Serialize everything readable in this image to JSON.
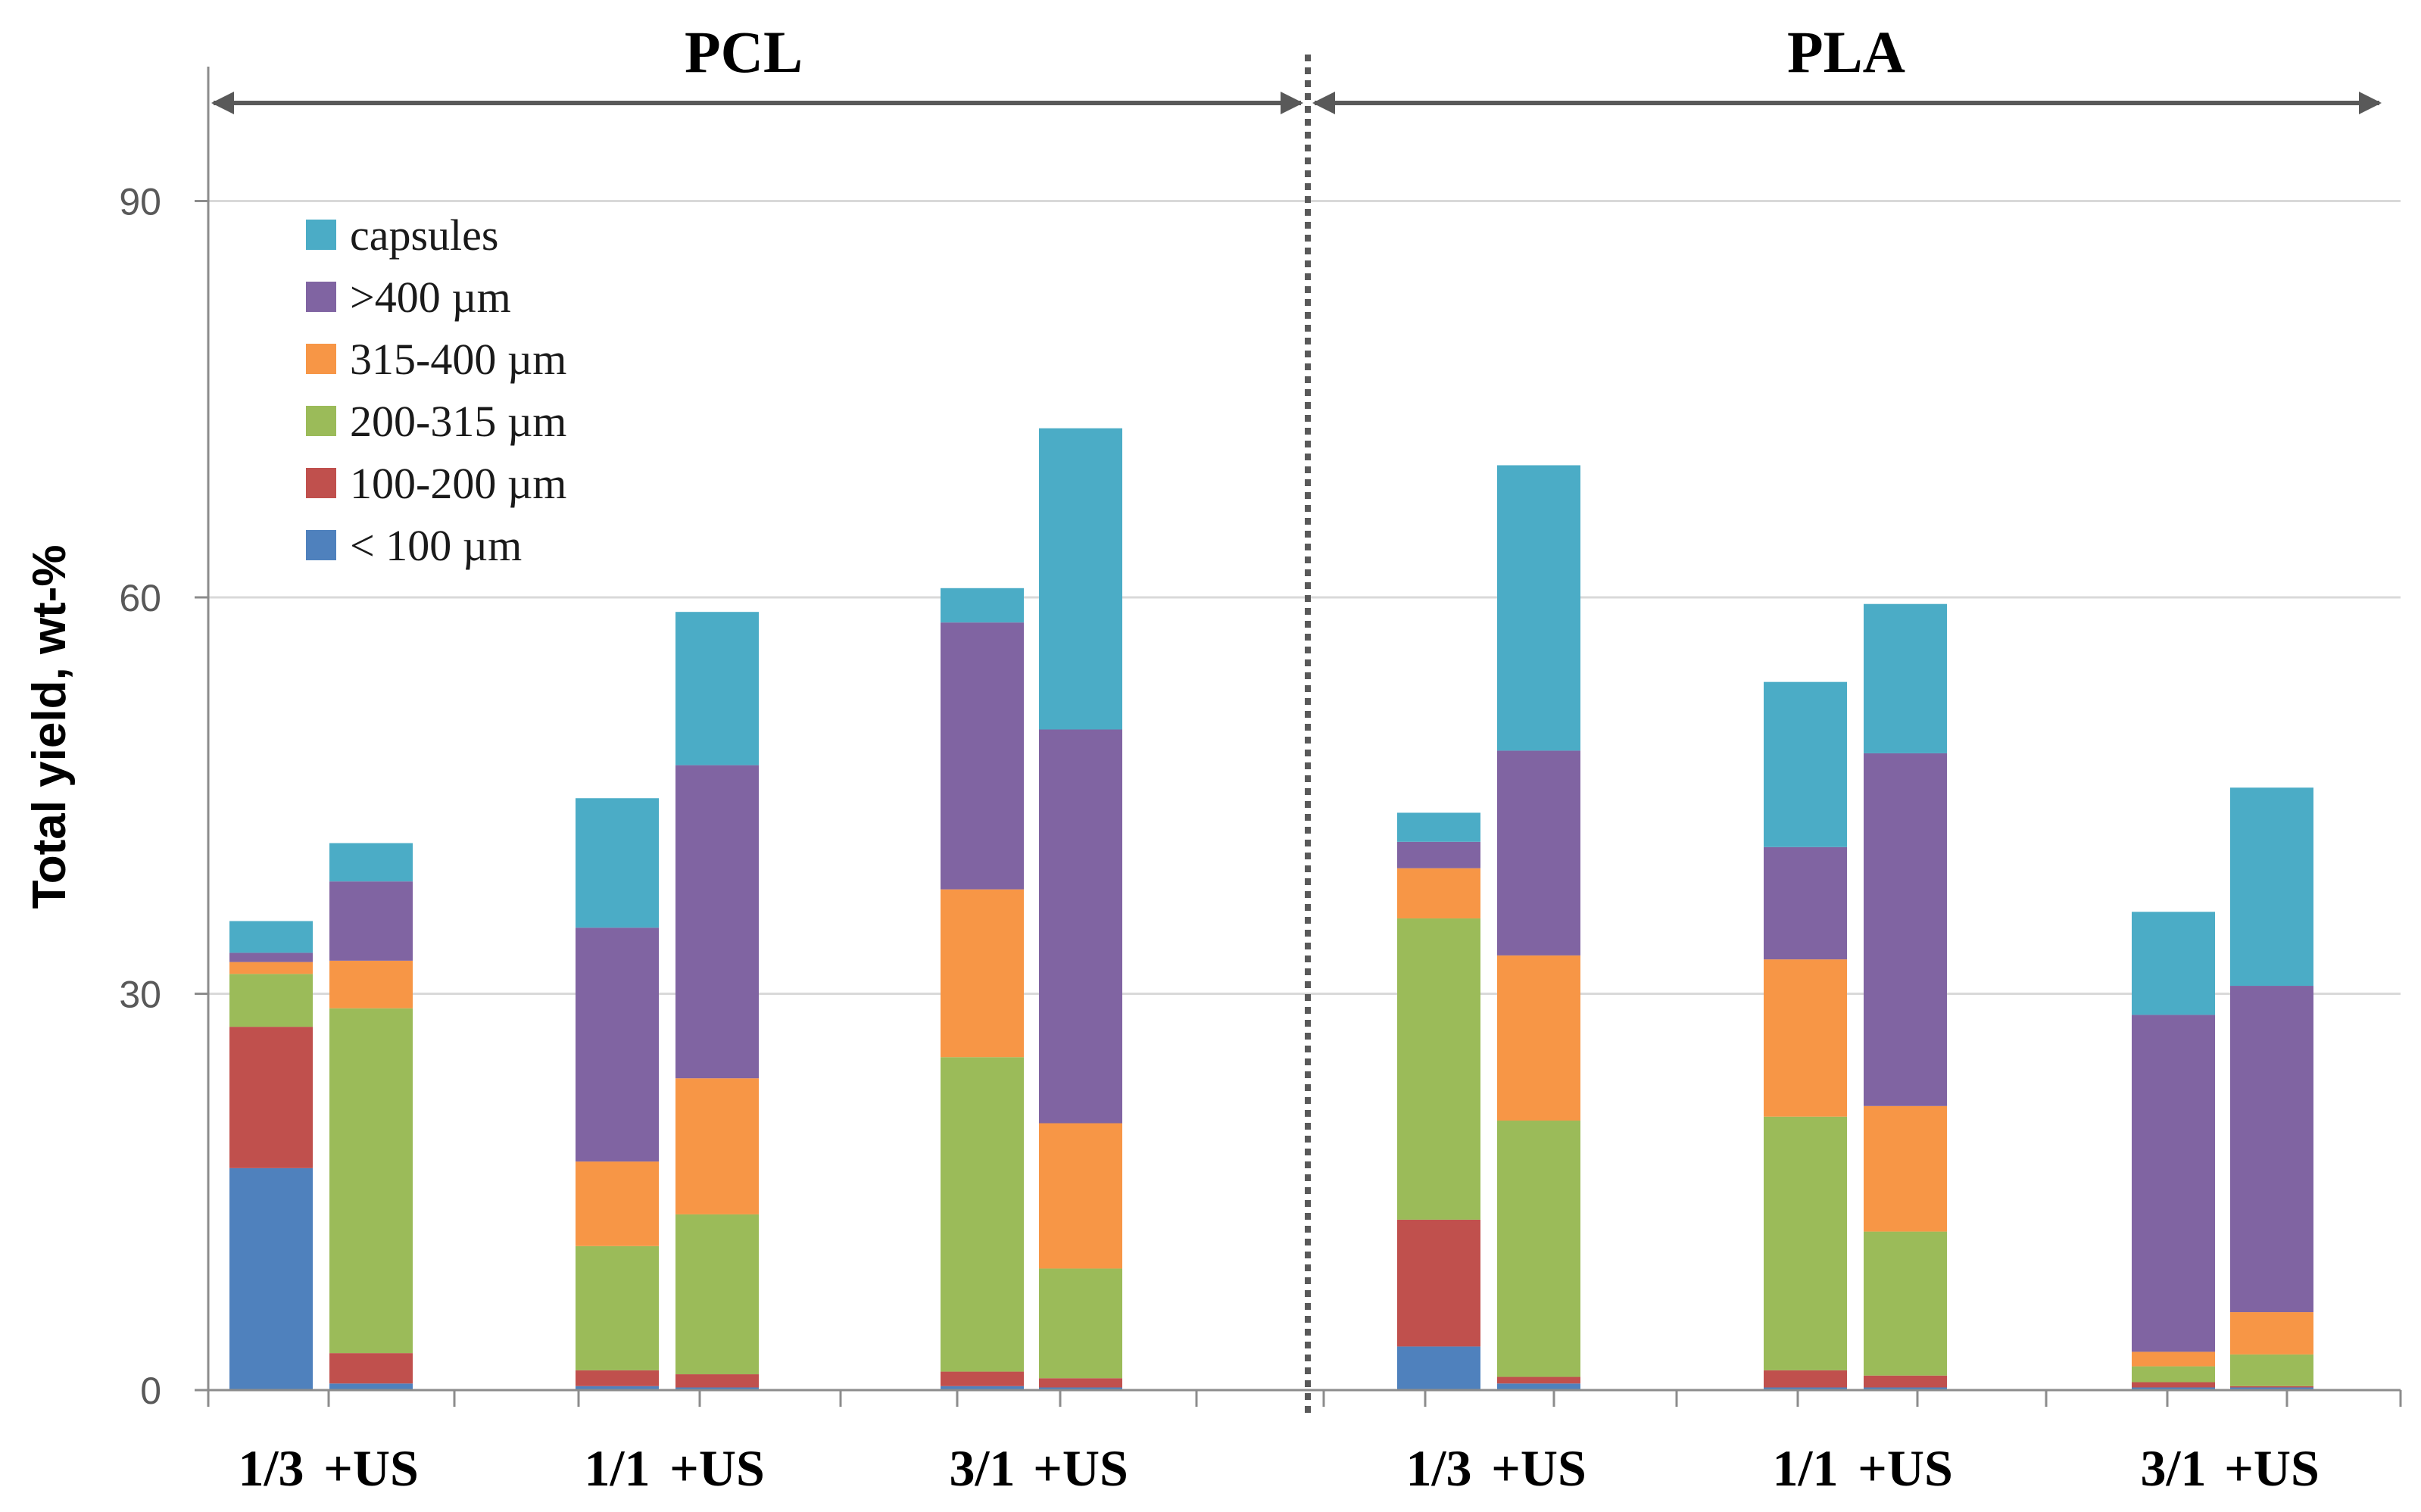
{
  "chart_data": {
    "type": "bar",
    "stacked": true,
    "ylabel": "Total yield,  wt-%",
    "ylim": [
      0,
      100
    ],
    "yticks": [
      0,
      30,
      60,
      90
    ],
    "grid": true,
    "legend_position": "top-left",
    "groups": [
      {
        "name": "PCL",
        "categories": [
          "1/3",
          "+US",
          "1/1",
          "+US",
          "3/1",
          "+US"
        ]
      },
      {
        "name": "PLA",
        "categories": [
          "1/3",
          "+US",
          "1/1",
          "+US",
          "3/1",
          "+US"
        ]
      }
    ],
    "categories": [
      "1/3",
      "+US",
      "1/1",
      "+US",
      "3/1",
      "+US",
      "1/3",
      "+US",
      "1/1",
      "+US",
      "3/1",
      "+US"
    ],
    "series": [
      {
        "name": "< 100 µm",
        "color": "#4F81BD",
        "values": [
          16.8,
          0.5,
          0.3,
          0.2,
          0.3,
          0.2,
          3.3,
          0.5,
          0.2,
          0.2,
          0.2,
          0.2
        ]
      },
      {
        "name": "100-200 µm",
        "color": "#C0504D",
        "values": [
          10.7,
          2.3,
          1.2,
          1.0,
          1.1,
          0.7,
          9.6,
          0.5,
          1.3,
          0.9,
          0.4,
          0.1
        ]
      },
      {
        "name": "200-315 µm",
        "color": "#9BBB59",
        "values": [
          4.0,
          26.1,
          9.4,
          12.1,
          23.8,
          8.3,
          22.8,
          19.4,
          19.2,
          10.9,
          1.2,
          2.4
        ]
      },
      {
        "name": "315-400 µm",
        "color": "#F79646",
        "values": [
          0.9,
          3.6,
          6.4,
          10.3,
          12.7,
          11.0,
          3.8,
          12.5,
          11.9,
          9.5,
          1.1,
          3.2
        ]
      },
      {
        "name": ">400 µm",
        "color": "#8064A2",
        "values": [
          0.7,
          6.0,
          17.7,
          23.7,
          20.2,
          29.8,
          2.0,
          15.5,
          8.5,
          26.7,
          25.5,
          24.7
        ]
      },
      {
        "name": "capsules",
        "color": "#4BACC6",
        "values": [
          2.4,
          2.9,
          9.8,
          11.6,
          2.6,
          22.8,
          2.2,
          21.6,
          12.5,
          11.3,
          7.8,
          15.0
        ]
      }
    ]
  }
}
